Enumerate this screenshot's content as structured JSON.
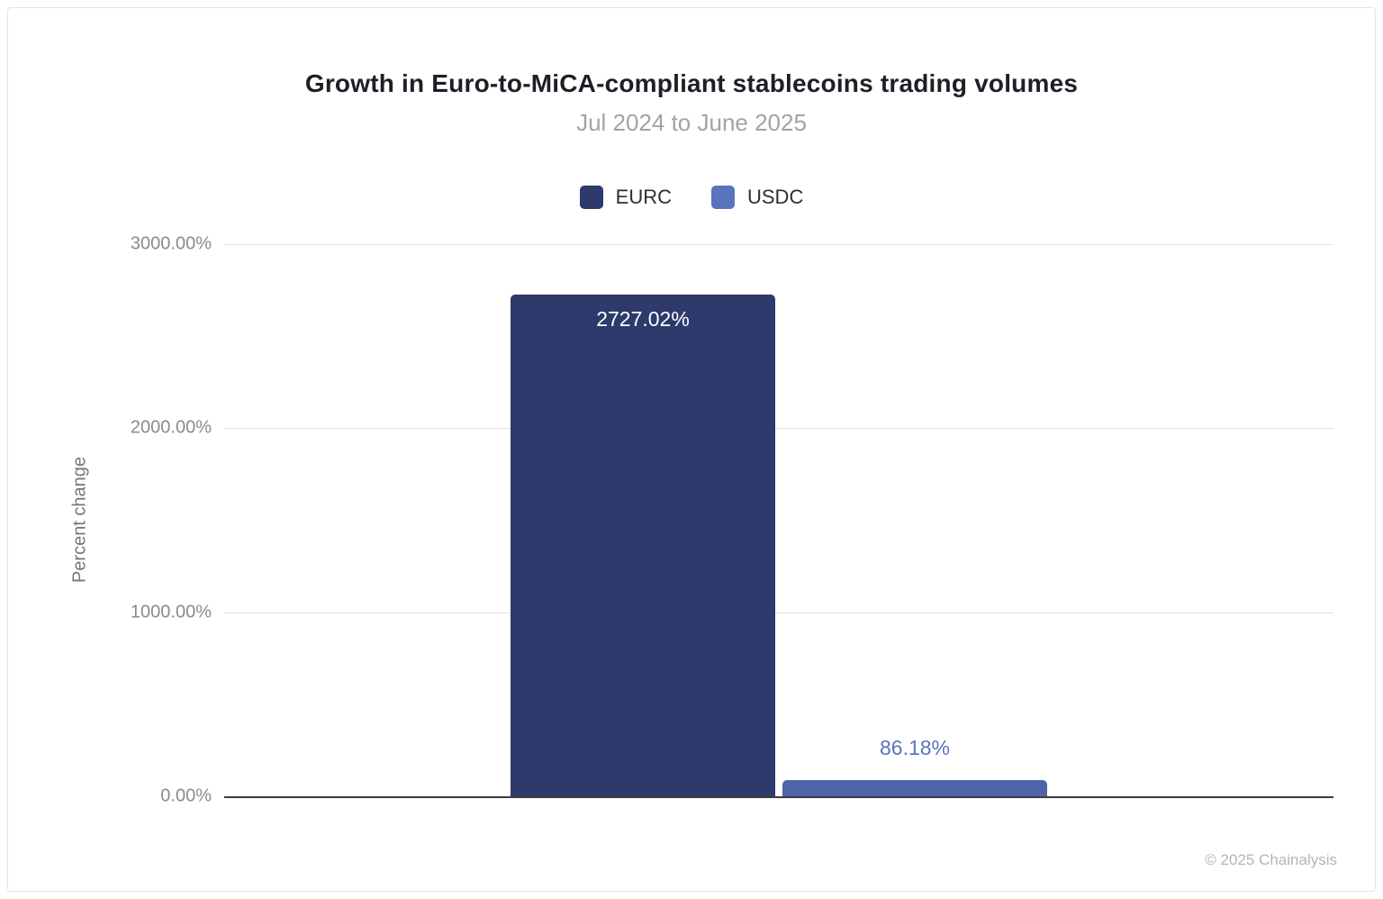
{
  "chart_data": {
    "type": "bar",
    "title": "Growth in Euro-to-MiCA-compliant stablecoins trading volumes",
    "subtitle": "Jul 2024 to June 2025",
    "ylabel": "Percent change",
    "ylim": [
      0,
      3000
    ],
    "grid": true,
    "legend_position": "top",
    "yticks": [
      {
        "value": 3000,
        "label": "3000.00%"
      },
      {
        "value": 2000,
        "label": "2000.00%"
      },
      {
        "value": 1000,
        "label": "1000.00%"
      },
      {
        "value": 0,
        "label": "0.00%"
      }
    ],
    "categories": [
      "EURC",
      "USDC"
    ],
    "values": [
      2727.02,
      86.18
    ],
    "value_labels": [
      "2727.02%",
      "86.18%"
    ],
    "value_label_colors": [
      "#ffffff",
      "#5b73bd"
    ],
    "colors": [
      "#2d3a6b",
      "#4d64a8"
    ],
    "legend": [
      {
        "label": "EURC",
        "color": "#2d3a6b"
      },
      {
        "label": "USDC",
        "color": "#5b73bd"
      }
    ]
  },
  "footer": {
    "copyright": "© 2025 Chainalysis"
  }
}
